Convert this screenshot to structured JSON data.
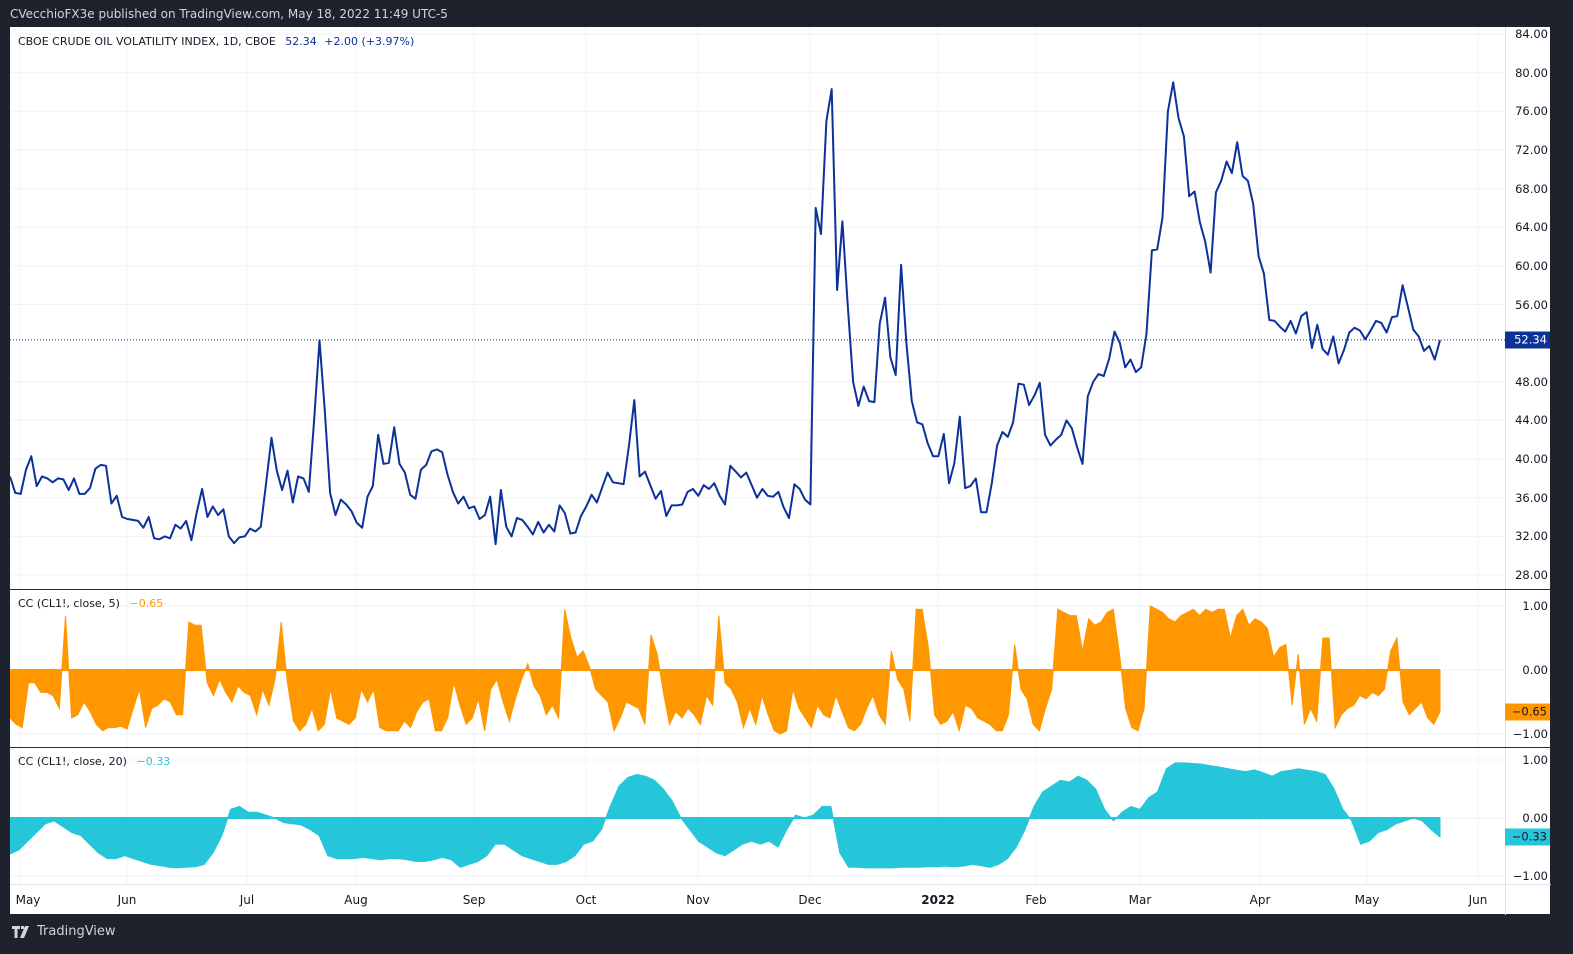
{
  "header": {
    "publisher_line": "CVecchioFX3e published on TradingView.com, May 18, 2022 11:49 UTC-5"
  },
  "main_pane": {
    "legend_title": "CBOE CRUDE OIL VOLATILITY INDEX, 1D, CBOE",
    "legend_last": "52.34",
    "legend_change": "+2.00 (+3.97%)",
    "last_price_tag": "52.34",
    "y_ticks": [
      "84.00",
      "80.00",
      "76.00",
      "72.00",
      "68.00",
      "64.00",
      "60.00",
      "56.00",
      "48.00",
      "44.00",
      "40.00",
      "36.00",
      "32.00",
      "28.00"
    ]
  },
  "cc5_pane": {
    "legend_title": "CC (CL1!, close, 5)",
    "legend_value": "−0.65",
    "value_tag": "−0.65",
    "y_ticks": [
      "1.00",
      "0.00",
      "−1.00"
    ]
  },
  "cc20_pane": {
    "legend_title": "CC (CL1!, close, 20)",
    "legend_value": "−0.33",
    "value_tag": "−0.33",
    "y_ticks": [
      "1.00",
      "0.00",
      "−1.00"
    ]
  },
  "time_axis": {
    "labels": [
      "May",
      "Jun",
      "Jul",
      "Aug",
      "Sep",
      "Oct",
      "Nov",
      "Dec",
      "2022",
      "Feb",
      "Mar",
      "Apr",
      "May",
      "Jun"
    ]
  },
  "footer": {
    "brand": "TradingView"
  },
  "colors": {
    "line": "#0c3299",
    "cc5": "#ff9800",
    "cc20": "#26c6da",
    "frame": "#1e222d",
    "tag_main": "#0c3299"
  },
  "chart_data": [
    {
      "type": "line",
      "title": "CBOE CRUDE OIL VOLATILITY INDEX, 1D, CBOE",
      "xlabel": "",
      "ylabel": "",
      "ylim": [
        28,
        84
      ],
      "x_ticks": [
        "May",
        "Jun",
        "Jul",
        "Aug",
        "Sep",
        "Oct",
        "Nov",
        "Dec",
        "2022",
        "Feb",
        "Mar",
        "Apr",
        "May",
        "Jun"
      ],
      "last_value": 52.34,
      "change": "+2.00 (+3.97%)",
      "series": [
        {
          "name": "OVX close",
          "values": [
            38.2,
            36.5,
            36.4,
            38.9,
            40.3,
            37.2,
            38.2,
            38.0,
            37.6,
            38.0,
            37.9,
            36.8,
            38.0,
            36.4,
            36.4,
            37.0,
            39.0,
            39.4,
            39.3,
            35.4,
            36.2,
            34.0,
            33.8,
            33.7,
            33.6,
            32.9,
            34.0,
            31.8,
            31.7,
            32.0,
            31.8,
            33.2,
            32.8,
            33.6,
            31.6,
            34.5,
            36.9,
            34.0,
            35.1,
            34.2,
            34.8,
            32.0,
            31.3,
            31.9,
            32.0,
            32.8,
            32.5,
            33.0,
            37.5,
            42.2,
            38.8,
            36.8,
            38.8,
            35.5,
            38.2,
            38.0,
            36.6,
            44.0,
            52.3,
            45.0,
            36.5,
            34.2,
            35.8,
            35.3,
            34.6,
            33.4,
            32.9,
            36.1,
            37.2,
            42.5,
            39.5,
            39.6,
            43.3,
            39.5,
            38.6,
            36.3,
            35.9,
            38.9,
            39.4,
            40.8,
            41.0,
            40.7,
            38.4,
            36.6,
            35.4,
            36.1,
            34.9,
            35.1,
            33.8,
            34.2,
            36.1,
            31.2,
            36.8,
            33.0,
            32.0,
            33.9,
            33.7,
            33.0,
            32.2,
            33.5,
            32.4,
            33.2,
            32.5,
            35.2,
            34.4,
            32.3,
            32.4,
            34.1,
            35.1,
            36.3,
            35.5,
            37.1,
            38.6,
            37.6,
            37.5,
            37.4,
            41.4,
            46.1,
            38.2,
            38.7,
            37.3,
            35.9,
            36.7,
            34.1,
            35.2,
            35.2,
            35.3,
            36.6,
            36.9,
            36.2,
            37.3,
            36.9,
            37.5,
            36.2,
            35.3,
            39.3,
            38.7,
            38.1,
            38.6,
            37.3,
            36.0,
            36.9,
            36.2,
            36.1,
            36.6,
            35.0,
            33.9,
            37.4,
            36.9,
            35.8,
            35.3,
            66.0,
            63.3,
            75.0,
            78.3,
            57.5,
            64.6,
            56.0,
            48.0,
            45.5,
            47.5,
            46.0,
            45.9,
            54.0,
            56.7,
            50.5,
            48.7,
            60.1,
            52.0,
            46.0,
            43.8,
            43.6,
            41.6,
            40.3,
            40.3,
            42.6,
            37.5,
            39.6,
            44.4,
            37.0,
            37.2,
            38.0,
            34.5,
            34.5,
            37.5,
            41.4,
            42.8,
            42.3,
            43.8,
            47.8,
            47.7,
            45.6,
            46.6,
            47.9,
            42.5,
            41.4,
            42.0,
            42.5,
            44.0,
            43.2,
            41.2,
            39.5,
            46.5,
            48.0,
            48.8,
            48.6,
            50.4,
            53.2,
            52.0,
            49.5,
            50.3,
            49.0,
            49.5,
            53.0,
            61.6,
            61.7,
            65.0,
            76.0,
            79.0,
            75.3,
            73.4,
            67.2,
            67.7,
            64.5,
            62.5,
            59.3,
            67.6,
            68.8,
            70.8,
            69.6,
            72.8,
            69.3,
            68.8,
            66.4,
            61.0,
            59.2,
            54.4,
            54.3,
            53.7,
            53.2,
            54.3,
            53.0,
            54.8,
            55.2,
            51.5,
            53.9,
            51.4,
            50.8,
            52.7,
            49.9,
            51.3,
            53.1,
            53.6,
            53.3,
            52.4,
            53.3,
            54.3,
            54.1,
            53.1,
            54.7,
            54.8,
            58.0,
            55.7,
            53.4,
            52.7,
            51.2,
            51.7,
            50.3,
            52.3
          ]
        }
      ]
    },
    {
      "type": "area",
      "title": "CC (CL1!, close, 5)",
      "ylim": [
        -1,
        1
      ],
      "last_value": -0.65,
      "series": [
        {
          "name": "CC 5",
          "values": [
            -0.75,
            -0.85,
            -0.9,
            -0.2,
            -0.2,
            -0.35,
            -0.35,
            -0.4,
            -0.6,
            0.85,
            -0.75,
            -0.7,
            -0.5,
            -0.65,
            -0.85,
            -0.95,
            -0.9,
            -0.9,
            -0.88,
            -0.92,
            -0.6,
            -0.3,
            -0.9,
            -0.6,
            -0.55,
            -0.45,
            -0.5,
            -0.7,
            -0.7,
            0.75,
            0.7,
            0.7,
            -0.2,
            -0.4,
            -0.15,
            -0.35,
            -0.5,
            -0.25,
            -0.35,
            -0.4,
            -0.7,
            -0.3,
            -0.55,
            -0.15,
            0.75,
            -0.2,
            -0.8,
            -0.95,
            -0.85,
            -0.6,
            -0.95,
            -0.85,
            -0.3,
            -0.75,
            -0.8,
            -0.85,
            -0.75,
            -0.3,
            -0.5,
            -0.3,
            -0.9,
            -0.95,
            -0.95,
            -0.95,
            -0.8,
            -0.9,
            -0.65,
            -0.5,
            -0.45,
            -0.95,
            -0.95,
            -0.75,
            -0.2,
            -0.55,
            -0.85,
            -0.75,
            -0.45,
            -0.95,
            -0.3,
            -0.15,
            -0.5,
            -0.8,
            -0.45,
            -0.15,
            0.1,
            -0.25,
            -0.4,
            -0.7,
            -0.55,
            -0.75,
            0.95,
            0.5,
            0.2,
            0.3,
            0.05,
            -0.3,
            -0.4,
            -0.5,
            -0.95,
            -0.75,
            -0.5,
            -0.55,
            -0.6,
            -0.85,
            0.55,
            0.25,
            -0.35,
            -0.85,
            -0.65,
            -0.75,
            -0.6,
            -0.7,
            -0.85,
            -0.4,
            -0.55,
            0.85,
            -0.2,
            -0.3,
            -0.5,
            -0.9,
            -0.6,
            -0.85,
            -0.4,
            -0.7,
            -0.95,
            -1.0,
            -0.95,
            -0.3,
            -0.6,
            -0.75,
            -0.9,
            -0.55,
            -0.7,
            -0.75,
            -0.4,
            -0.65,
            -0.9,
            -0.95,
            -0.85,
            -0.6,
            -0.4,
            -0.7,
            -0.85,
            0.3,
            -0.15,
            -0.3,
            -0.8,
            0.95,
            0.95,
            0.35,
            -0.7,
            -0.85,
            -0.8,
            -0.65,
            -0.95,
            -0.55,
            -0.6,
            -0.75,
            -0.8,
            -0.85,
            -0.95,
            -0.95,
            -0.7,
            0.4,
            -0.3,
            -0.45,
            -0.85,
            -0.95,
            -0.6,
            -0.3,
            0.95,
            0.9,
            0.85,
            0.85,
            0.3,
            0.8,
            0.7,
            0.75,
            0.9,
            0.95,
            0.25,
            -0.6,
            -0.9,
            -0.95,
            -0.6,
            1.0,
            0.95,
            0.9,
            0.8,
            0.75,
            0.85,
            0.9,
            0.95,
            0.85,
            0.95,
            0.9,
            0.95,
            0.95,
            0.5,
            0.85,
            0.95,
            0.7,
            0.8,
            0.75,
            0.65,
            0.2,
            0.35,
            0.4,
            -0.55,
            0.25,
            -0.85,
            -0.6,
            -0.8,
            0.5,
            0.5,
            -0.9,
            -0.7,
            -0.6,
            -0.55,
            -0.4,
            -0.45,
            -0.35,
            -0.4,
            -0.3,
            0.3,
            0.5,
            -0.5,
            -0.7,
            -0.6,
            -0.5,
            -0.75,
            -0.85,
            -0.65
          ]
        }
      ]
    },
    {
      "type": "area",
      "title": "CC (CL1!, close, 20)",
      "ylim": [
        -1,
        1
      ],
      "last_value": -0.33,
      "series": [
        {
          "name": "CC 20",
          "values": [
            -0.62,
            -0.55,
            -0.4,
            -0.25,
            -0.1,
            -0.05,
            -0.15,
            -0.25,
            -0.3,
            -0.45,
            -0.6,
            -0.7,
            -0.7,
            -0.65,
            -0.7,
            -0.75,
            -0.8,
            -0.82,
            -0.85,
            -0.86,
            -0.85,
            -0.84,
            -0.8,
            -0.6,
            -0.3,
            0.15,
            0.2,
            0.1,
            0.1,
            0.05,
            0.0,
            -0.08,
            -0.1,
            -0.12,
            -0.2,
            -0.3,
            -0.65,
            -0.7,
            -0.7,
            -0.7,
            -0.68,
            -0.7,
            -0.72,
            -0.7,
            -0.7,
            -0.72,
            -0.75,
            -0.75,
            -0.72,
            -0.68,
            -0.72,
            -0.85,
            -0.8,
            -0.75,
            -0.65,
            -0.45,
            -0.45,
            -0.55,
            -0.65,
            -0.7,
            -0.75,
            -0.8,
            -0.8,
            -0.75,
            -0.65,
            -0.45,
            -0.4,
            -0.2,
            0.2,
            0.55,
            0.7,
            0.75,
            0.72,
            0.65,
            0.5,
            0.3,
            0.0,
            -0.2,
            -0.4,
            -0.5,
            -0.6,
            -0.65,
            -0.55,
            -0.45,
            -0.4,
            -0.45,
            -0.4,
            -0.5,
            -0.2,
            0.05,
            0.0,
            0.05,
            0.2,
            0.2,
            -0.6,
            -0.85,
            -0.85,
            -0.86,
            -0.86,
            -0.86,
            -0.86,
            -0.85,
            -0.85,
            -0.85,
            -0.84,
            -0.84,
            -0.83,
            -0.84,
            -0.83,
            -0.8,
            -0.82,
            -0.85,
            -0.8,
            -0.7,
            -0.5,
            -0.2,
            0.2,
            0.45,
            0.55,
            0.65,
            0.62,
            0.72,
            0.65,
            0.5,
            0.15,
            -0.05,
            0.1,
            0.2,
            0.15,
            0.35,
            0.45,
            0.85,
            0.95,
            0.95,
            0.94,
            0.93,
            0.9,
            0.88,
            0.85,
            0.82,
            0.8,
            0.83,
            0.78,
            0.72,
            0.8,
            0.82,
            0.85,
            0.82,
            0.8,
            0.75,
            0.5,
            0.15,
            -0.05,
            -0.45,
            -0.4,
            -0.25,
            -0.2,
            -0.1,
            -0.05,
            0.0,
            -0.05,
            -0.2,
            -0.33
          ]
        }
      ]
    }
  ]
}
